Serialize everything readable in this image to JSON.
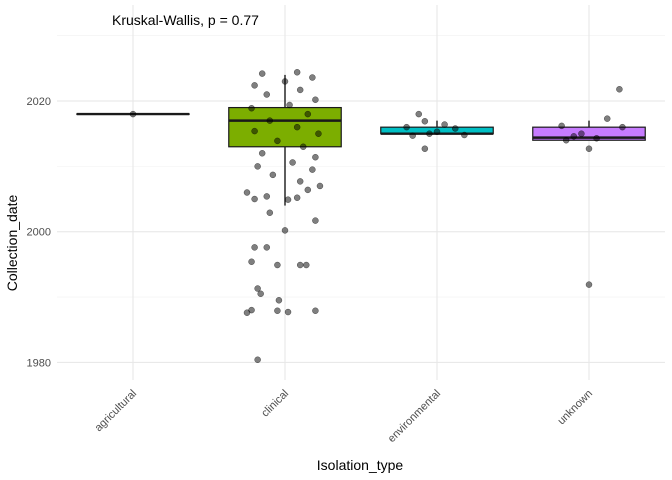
{
  "chart_data": {
    "type": "boxplot",
    "annotation": "Kruskal-Wallis, p = 0.77",
    "xlabel": "Isolation_type",
    "ylabel": "Collection_date",
    "ylim": [
      1977.3,
      2034.7
    ],
    "y_ticks": [
      1980,
      2000,
      2020
    ],
    "grid": true,
    "legend": "none",
    "categories": [
      "agricultural",
      "clinical",
      "environmental",
      "unknown"
    ],
    "boxes": [
      {
        "category": "agricultural",
        "q1": 2018,
        "median": 2018,
        "q3": 2018,
        "whisker_low": 2018,
        "whisker_high": 2018,
        "fill": "#F8766D"
      },
      {
        "category": "clinical",
        "q1": 2013,
        "median": 2017,
        "q3": 2019,
        "whisker_low": 2004,
        "whisker_high": 2024,
        "fill": "#7CAE00"
      },
      {
        "category": "environmental",
        "q1": 2015,
        "median": 2015,
        "q3": 2016,
        "whisker_low": 2015,
        "whisker_high": 2017,
        "fill": "#00BFC4"
      },
      {
        "category": "unknown",
        "q1": 2014,
        "median": 2014.4,
        "q3": 2016,
        "whisker_low": 2014,
        "whisker_high": 2017,
        "fill": "#C77CFF"
      }
    ],
    "points": [
      {
        "category": "agricultural",
        "jitter": 0.0,
        "value": 2018
      },
      {
        "category": "clinical",
        "jitter": -0.18,
        "value": 1980.4
      },
      {
        "category": "clinical",
        "jitter": 0.02,
        "value": 1987.7
      },
      {
        "category": "clinical",
        "jitter": -0.22,
        "value": 1988.0
      },
      {
        "category": "clinical",
        "jitter": -0.25,
        "value": 1987.6
      },
      {
        "category": "clinical",
        "jitter": -0.05,
        "value": 1987.9
      },
      {
        "category": "clinical",
        "jitter": 0.2,
        "value": 1987.9
      },
      {
        "category": "clinical",
        "jitter": -0.04,
        "value": 1989.5
      },
      {
        "category": "clinical",
        "jitter": -0.16,
        "value": 1990.5
      },
      {
        "category": "clinical",
        "jitter": -0.18,
        "value": 1991.3
      },
      {
        "category": "clinical",
        "jitter": -0.05,
        "value": 1994.9
      },
      {
        "category": "clinical",
        "jitter": 0.1,
        "value": 1994.9
      },
      {
        "category": "clinical",
        "jitter": 0.14,
        "value": 1994.9
      },
      {
        "category": "clinical",
        "jitter": -0.22,
        "value": 1995.4
      },
      {
        "category": "clinical",
        "jitter": -0.2,
        "value": 1997.6
      },
      {
        "category": "clinical",
        "jitter": -0.12,
        "value": 1997.6
      },
      {
        "category": "clinical",
        "jitter": 0.0,
        "value": 2000.2
      },
      {
        "category": "clinical",
        "jitter": 0.2,
        "value": 2001.7
      },
      {
        "category": "clinical",
        "jitter": -0.1,
        "value": 2002.9
      },
      {
        "category": "clinical",
        "jitter": 0.02,
        "value": 2004.9
      },
      {
        "category": "clinical",
        "jitter": 0.08,
        "value": 2005.2
      },
      {
        "category": "clinical",
        "jitter": -0.2,
        "value": 2005.0
      },
      {
        "category": "clinical",
        "jitter": -0.12,
        "value": 2005.4
      },
      {
        "category": "clinical",
        "jitter": 0.15,
        "value": 2006.4
      },
      {
        "category": "clinical",
        "jitter": -0.25,
        "value": 2006.0
      },
      {
        "category": "clinical",
        "jitter": 0.23,
        "value": 2007.0
      },
      {
        "category": "clinical",
        "jitter": 0.1,
        "value": 2007.7
      },
      {
        "category": "clinical",
        "jitter": -0.08,
        "value": 2008.7
      },
      {
        "category": "clinical",
        "jitter": 0.18,
        "value": 2009.5
      },
      {
        "category": "clinical",
        "jitter": -0.18,
        "value": 2010.0
      },
      {
        "category": "clinical",
        "jitter": 0.05,
        "value": 2010.6
      },
      {
        "category": "clinical",
        "jitter": 0.2,
        "value": 2011.4
      },
      {
        "category": "clinical",
        "jitter": -0.15,
        "value": 2012.0
      },
      {
        "category": "clinical",
        "jitter": 0.12,
        "value": 2013.0
      },
      {
        "category": "clinical",
        "jitter": -0.05,
        "value": 2013.9
      },
      {
        "category": "clinical",
        "jitter": 0.22,
        "value": 2015.0
      },
      {
        "category": "clinical",
        "jitter": -0.2,
        "value": 2015.4
      },
      {
        "category": "clinical",
        "jitter": 0.08,
        "value": 2016.0
      },
      {
        "category": "clinical",
        "jitter": -0.1,
        "value": 2017.0
      },
      {
        "category": "clinical",
        "jitter": 0.15,
        "value": 2018.0
      },
      {
        "category": "clinical",
        "jitter": -0.22,
        "value": 2018.9
      },
      {
        "category": "clinical",
        "jitter": 0.03,
        "value": 2019.4
      },
      {
        "category": "clinical",
        "jitter": 0.2,
        "value": 2020.2
      },
      {
        "category": "clinical",
        "jitter": -0.12,
        "value": 2021.0
      },
      {
        "category": "clinical",
        "jitter": 0.1,
        "value": 2021.7
      },
      {
        "category": "clinical",
        "jitter": -0.2,
        "value": 2022.4
      },
      {
        "category": "clinical",
        "jitter": 0.0,
        "value": 2023.0
      },
      {
        "category": "clinical",
        "jitter": 0.18,
        "value": 2023.6
      },
      {
        "category": "clinical",
        "jitter": -0.15,
        "value": 2024.2
      },
      {
        "category": "clinical",
        "jitter": 0.08,
        "value": 2024.4
      },
      {
        "category": "environmental",
        "jitter": -0.12,
        "value": 2018.0
      },
      {
        "category": "environmental",
        "jitter": -0.08,
        "value": 2016.9
      },
      {
        "category": "environmental",
        "jitter": 0.05,
        "value": 2016.4
      },
      {
        "category": "environmental",
        "jitter": -0.2,
        "value": 2016.0
      },
      {
        "category": "environmental",
        "jitter": 0.12,
        "value": 2015.8
      },
      {
        "category": "environmental",
        "jitter": 0.0,
        "value": 2015.3
      },
      {
        "category": "environmental",
        "jitter": -0.05,
        "value": 2015.0
      },
      {
        "category": "environmental",
        "jitter": 0.18,
        "value": 2014.8
      },
      {
        "category": "environmental",
        "jitter": -0.16,
        "value": 2014.7
      },
      {
        "category": "environmental",
        "jitter": -0.08,
        "value": 2012.7
      },
      {
        "category": "unknown",
        "jitter": 0.2,
        "value": 2021.8
      },
      {
        "category": "unknown",
        "jitter": 0.12,
        "value": 2017.3
      },
      {
        "category": "unknown",
        "jitter": -0.18,
        "value": 2016.2
      },
      {
        "category": "unknown",
        "jitter": 0.22,
        "value": 2016.0
      },
      {
        "category": "unknown",
        "jitter": -0.05,
        "value": 2015.0
      },
      {
        "category": "unknown",
        "jitter": -0.15,
        "value": 2014.0
      },
      {
        "category": "unknown",
        "jitter": 0.05,
        "value": 2014.3
      },
      {
        "category": "unknown",
        "jitter": -0.1,
        "value": 2014.6
      },
      {
        "category": "unknown",
        "jitter": 0.0,
        "value": 2012.7
      },
      {
        "category": "unknown",
        "jitter": 0.0,
        "value": 1991.9
      }
    ]
  }
}
